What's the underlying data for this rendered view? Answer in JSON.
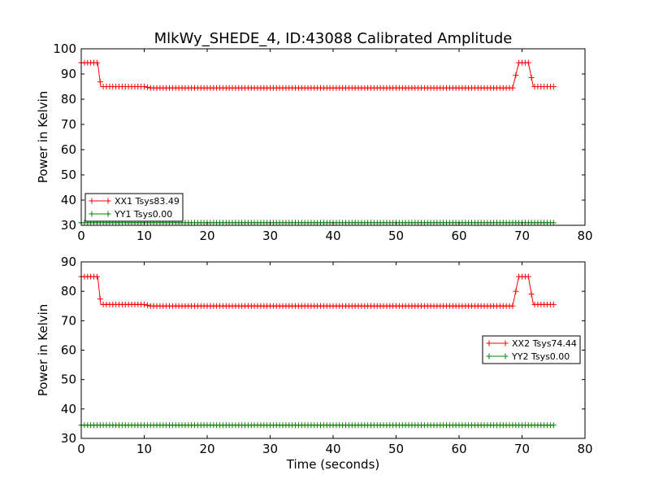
{
  "chart_data": [
    {
      "type": "line",
      "title": "MlkWy_SHEDE_4, ID:43088 Calibrated Amplitude",
      "xlabel": "",
      "ylabel": "Power in Kelvin",
      "xlim": [
        0,
        80
      ],
      "ylim": [
        30,
        100
      ],
      "xticks": [
        0,
        10,
        20,
        30,
        40,
        50,
        60,
        70,
        80
      ],
      "yticks": [
        30,
        40,
        50,
        60,
        70,
        80,
        90,
        100
      ],
      "grid": false,
      "legend_position": "lower-left",
      "marker": "+",
      "series": [
        {
          "name": "XX1 Tsys83.49",
          "color": "#ff0000",
          "points": [
            [
              0,
              94.5
            ],
            [
              2.6,
              94.5
            ],
            [
              3.1,
              85
            ],
            [
              10,
              85
            ],
            [
              11,
              84.5
            ],
            [
              68.5,
              84.5
            ],
            [
              69.5,
              94.5
            ],
            [
              71,
              94.5
            ],
            [
              71.8,
              85
            ],
            [
              75,
              85
            ]
          ]
        },
        {
          "name": "YY1 Tsys0.00",
          "color": "#008000",
          "points": [
            [
              0,
              31
            ],
            [
              75,
              31
            ]
          ]
        }
      ]
    },
    {
      "type": "line",
      "title": "",
      "xlabel": "Time (seconds)",
      "ylabel": "Power in Kelvin",
      "xlim": [
        0,
        80
      ],
      "ylim": [
        30,
        90
      ],
      "xticks": [
        0,
        10,
        20,
        30,
        40,
        50,
        60,
        70,
        80
      ],
      "yticks": [
        30,
        40,
        50,
        60,
        70,
        80,
        90
      ],
      "grid": false,
      "legend_position": "center-right",
      "marker": "+",
      "series": [
        {
          "name": "XX2 Tsys74.44",
          "color": "#ff0000",
          "points": [
            [
              0,
              85
            ],
            [
              2.6,
              85
            ],
            [
              3.1,
              75.5
            ],
            [
              10,
              75.5
            ],
            [
              11,
              75
            ],
            [
              68.5,
              75
            ],
            [
              69.5,
              85
            ],
            [
              71,
              85
            ],
            [
              71.8,
              75.5
            ],
            [
              75,
              75.5
            ]
          ]
        },
        {
          "name": "YY2 Tsys0.00",
          "color": "#008000",
          "points": [
            [
              0,
              34.5
            ],
            [
              75,
              34.5
            ]
          ]
        }
      ]
    }
  ]
}
